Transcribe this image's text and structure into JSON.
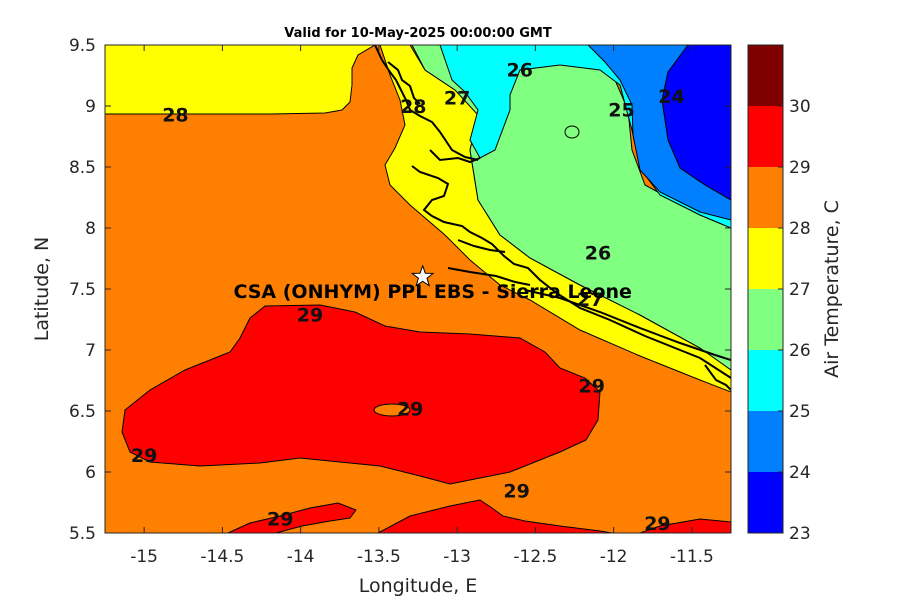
{
  "title": "Valid for 10-May-2025 00:00:00 GMT",
  "xlabel": "Longitude, E",
  "ylabel": "Latitude, N",
  "colorbar_label": "Air Temperature, C",
  "x_ticks": [
    "-15",
    "-14.5",
    "-14",
    "-13.5",
    "-13",
    "-12.5",
    "-12",
    "-11.5"
  ],
  "y_ticks": [
    "5.5",
    "6",
    "6.5",
    "7",
    "7.5",
    "8",
    "8.5",
    "9",
    "9.5"
  ],
  "colorbar_ticks": [
    "23",
    "24",
    "25",
    "26",
    "27",
    "28",
    "29",
    "30"
  ],
  "colorbar_colors": [
    "#0000ff",
    "#0080ff",
    "#00ffff",
    "#80ff80",
    "#ffff00",
    "#ff8000",
    "#ff0000",
    "#800000"
  ],
  "site": {
    "name": "CSA (ONHYM) PPL EBS  - Sierra Leone",
    "lon": -13.22,
    "lat": 7.6
  },
  "contour_labels": [
    {
      "text": "28",
      "lon": -14.8,
      "lat": 8.93
    },
    {
      "text": "26",
      "lon": -12.6,
      "lat": 9.3
    },
    {
      "text": "27",
      "lon": -13.0,
      "lat": 9.07
    },
    {
      "text": "28",
      "lon": -13.28,
      "lat": 9.0
    },
    {
      "text": "25",
      "lon": -11.95,
      "lat": 8.97
    },
    {
      "text": "24",
      "lon": -11.63,
      "lat": 9.08
    },
    {
      "text": "26",
      "lon": -12.1,
      "lat": 7.8
    },
    {
      "text": "27",
      "lon": -12.15,
      "lat": 7.42
    },
    {
      "text": "29",
      "lon": -13.94,
      "lat": 7.29
    },
    {
      "text": "29",
      "lon": -12.14,
      "lat": 6.71
    },
    {
      "text": "29",
      "lon": -13.3,
      "lat": 6.52
    },
    {
      "text": "29",
      "lon": -15.0,
      "lat": 6.14
    },
    {
      "text": "29",
      "lon": -12.62,
      "lat": 5.85
    },
    {
      "text": "29",
      "lon": -14.13,
      "lat": 5.62
    },
    {
      "text": "29",
      "lon": -11.72,
      "lat": 5.58
    }
  ],
  "colors": {
    "frame": "#262626",
    "contour": "#000000"
  }
}
